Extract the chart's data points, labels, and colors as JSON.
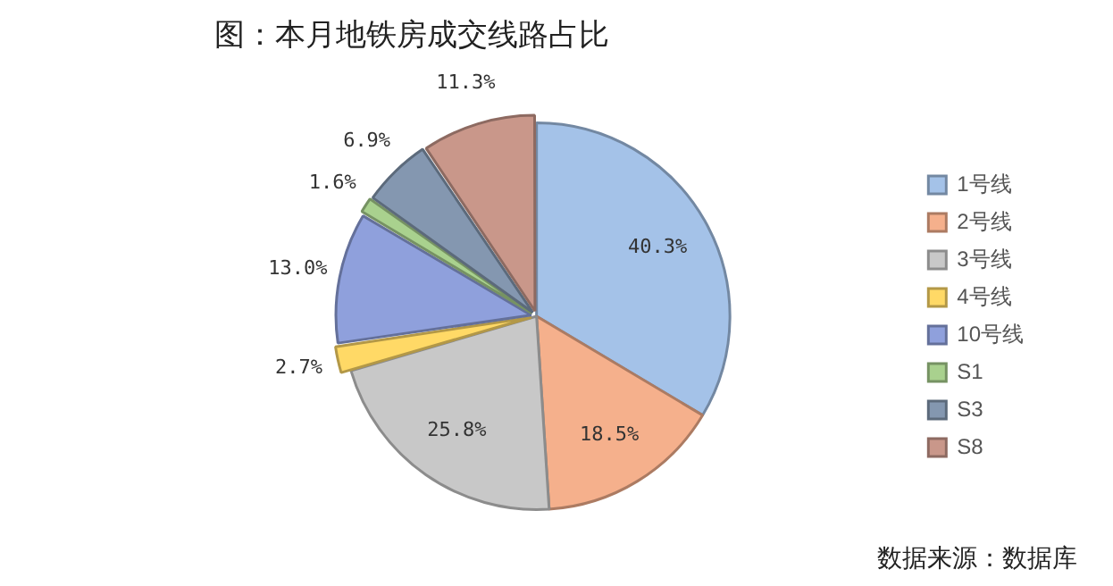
{
  "chart_data": {
    "type": "pie",
    "title": "图：本月地铁房成交线路占比",
    "categories": [
      "1号线",
      "2号线",
      "3号线",
      "4号线",
      "10号线",
      "S1",
      "S3",
      "S8"
    ],
    "values": [
      40.3,
      18.5,
      25.8,
      2.7,
      13.0,
      1.6,
      6.9,
      11.3
    ],
    "value_labels": [
      "40.3%",
      "18.5%",
      "25.8%",
      "2.7%",
      "13.0%",
      "1.6%",
      "6.9%",
      "11.3%"
    ],
    "colors": [
      "#a4c2e8",
      "#f5b08c",
      "#c8c8c8",
      "#ffd966",
      "#8fa0dc",
      "#a9d18e",
      "#8497b0",
      "#c9978a"
    ],
    "legend": "right",
    "annotations": [
      "数据来源：数据库"
    ]
  }
}
